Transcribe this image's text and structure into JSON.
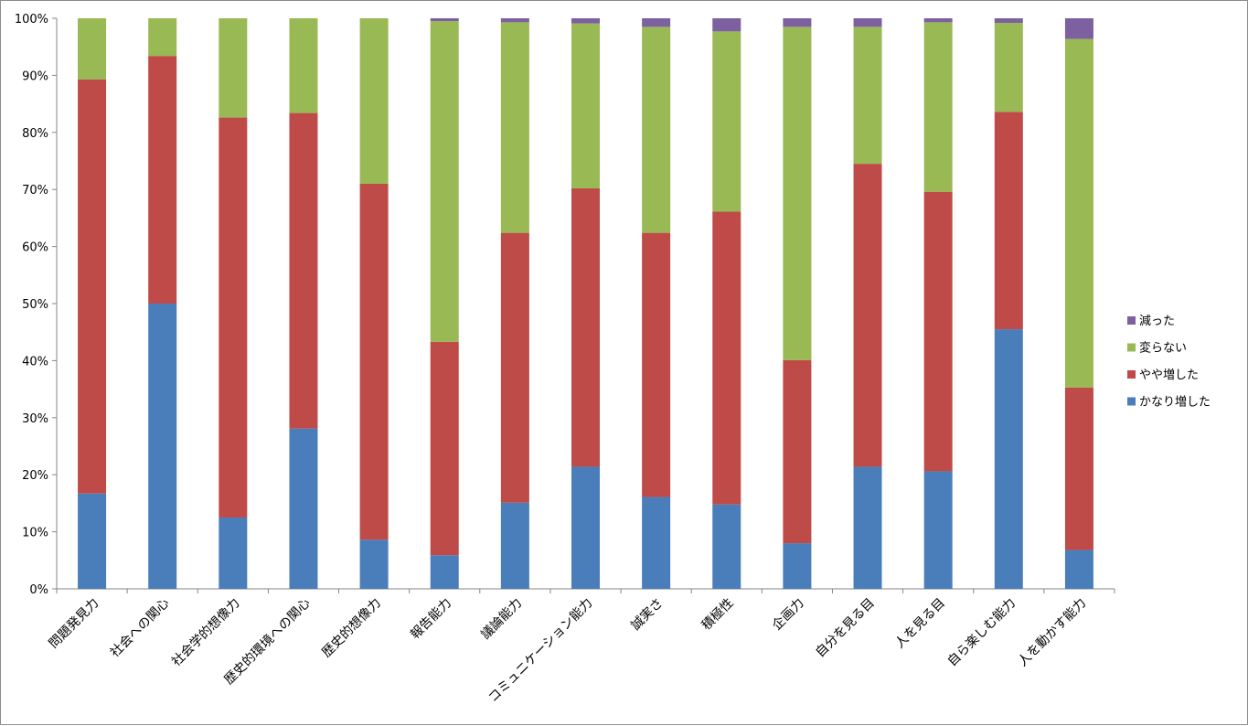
{
  "chart_data": {
    "type": "bar",
    "stacked": "percent",
    "categories": [
      "問題発見力",
      "社会への関心",
      "社会学的想像力",
      "歴史的環境への関心",
      "歴史的想像力",
      "報告能力",
      "議論能力",
      "コミュニケーション能力",
      "誠実さ",
      "積極性",
      "企画力",
      "自分を見る目",
      "人を見る目",
      "自ら楽しむ能力",
      "人を動かす能力"
    ],
    "series": [
      {
        "name": "かなり増した",
        "color": "#4a7ebb",
        "values": [
          16.7,
          50.0,
          12.5,
          28.1,
          8.6,
          5.9,
          15.1,
          21.4,
          16.1,
          14.8,
          8.0,
          21.4,
          20.6,
          45.5,
          6.8
        ]
      },
      {
        "name": "やや増した",
        "color": "#be4b48",
        "values": [
          72.6,
          43.4,
          70.1,
          55.3,
          62.4,
          37.4,
          47.3,
          48.8,
          46.3,
          51.3,
          32.1,
          53.1,
          49.0,
          38.1,
          28.5
        ]
      },
      {
        "name": "変らない",
        "color": "#98b954",
        "values": [
          10.7,
          6.6,
          17.4,
          16.6,
          29.0,
          56.2,
          36.9,
          28.9,
          36.1,
          31.6,
          58.4,
          24.0,
          29.7,
          15.6,
          61.1
        ]
      },
      {
        "name": "減った",
        "color": "#7d60a0",
        "values": [
          0,
          0,
          0,
          0,
          0,
          0.5,
          0.7,
          0.9,
          1.5,
          2.3,
          1.5,
          1.5,
          0.7,
          0.8,
          3.6
        ]
      }
    ],
    "legend_order": [
      "減った",
      "変らない",
      "やや増した",
      "かなり増した"
    ],
    "y_ticks": [
      "0%",
      "10%",
      "20%",
      "30%",
      "40%",
      "50%",
      "60%",
      "70%",
      "80%",
      "90%",
      "100%"
    ],
    "ylim": [
      0,
      100
    ],
    "grid": false,
    "legend_position": "right"
  }
}
